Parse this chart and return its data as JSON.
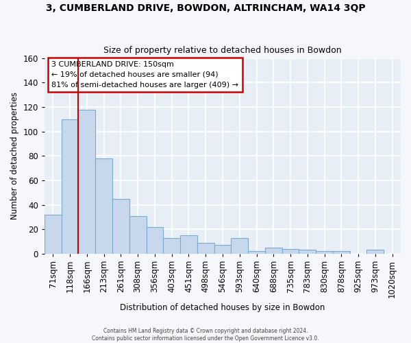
{
  "title": "3, CUMBERLAND DRIVE, BOWDON, ALTRINCHAM, WA14 3QP",
  "subtitle": "Size of property relative to detached houses in Bowdon",
  "xlabel": "Distribution of detached houses by size in Bowdon",
  "ylabel": "Number of detached properties",
  "bar_color": "#c8d8ec",
  "bar_edge_color": "#7aaad0",
  "fig_background": "#f5f7fa",
  "ax_background": "#e8eef5",
  "grid_color": "#ffffff",
  "categories": [
    "71sqm",
    "118sqm",
    "166sqm",
    "213sqm",
    "261sqm",
    "308sqm",
    "356sqm",
    "403sqm",
    "451sqm",
    "498sqm",
    "546sqm",
    "593sqm",
    "640sqm",
    "688sqm",
    "735sqm",
    "783sqm",
    "830sqm",
    "878sqm",
    "925sqm",
    "973sqm",
    "1020sqm"
  ],
  "bar_values": [
    32,
    110,
    118,
    78,
    45,
    31,
    22,
    13,
    15,
    9,
    7,
    13,
    2,
    5,
    4,
    3,
    2,
    2,
    0,
    3,
    0
  ],
  "ylim": [
    0,
    160
  ],
  "yticks": [
    0,
    20,
    40,
    60,
    80,
    100,
    120,
    140,
    160
  ],
  "prop_line_color": "#cc0000",
  "prop_line_idx": 2,
  "annotation_line1": "3 CUMBERLAND DRIVE: 150sqm",
  "annotation_line2": "← 19% of detached houses are smaller (94)",
  "annotation_line3": "81% of semi-detached houses are larger (409) →",
  "annotation_bg": "#ffffff",
  "annotation_border": "#cc0000",
  "footer_line1": "Contains HM Land Registry data © Crown copyright and database right 2024.",
  "footer_line2": "Contains public sector information licensed under the Open Government Licence v3.0."
}
